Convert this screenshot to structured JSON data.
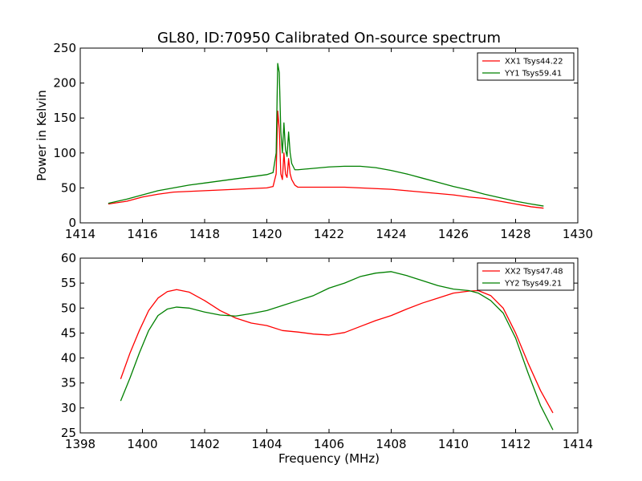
{
  "figure": {
    "title": "GL80, ID:70950 Calibrated On-source spectrum"
  },
  "chart_data": [
    {
      "type": "line",
      "title": "GL80, ID:70950 Calibrated On-source spectrum",
      "xlabel": "",
      "ylabel": "Power in Kelvin",
      "xlim": [
        1414,
        1430
      ],
      "ylim": [
        0,
        250
      ],
      "x_ticks": [
        1414,
        1416,
        1418,
        1420,
        1422,
        1424,
        1426,
        1428,
        1430
      ],
      "y_ticks": [
        0,
        50,
        100,
        150,
        200,
        250
      ],
      "grid": false,
      "legend_position": "top-right",
      "series": [
        {
          "name": "XX1 Tsys44.22",
          "color": "#ff0000",
          "x": [
            1414.9,
            1415.5,
            1416.0,
            1416.5,
            1417.0,
            1417.5,
            1418.0,
            1418.5,
            1419.0,
            1419.5,
            1420.0,
            1420.2,
            1420.3,
            1420.35,
            1420.4,
            1420.45,
            1420.5,
            1420.55,
            1420.6,
            1420.65,
            1420.7,
            1420.75,
            1420.8,
            1420.9,
            1421.0,
            1421.5,
            1422.0,
            1422.5,
            1423.0,
            1423.5,
            1424.0,
            1424.5,
            1425.0,
            1425.5,
            1426.0,
            1426.5,
            1427.0,
            1427.5,
            1428.0,
            1428.5,
            1428.9
          ],
          "values": [
            27,
            31,
            37,
            41,
            44,
            45,
            46,
            47,
            48,
            49,
            50,
            52,
            70,
            160,
            135,
            70,
            62,
            100,
            70,
            65,
            92,
            70,
            62,
            54,
            51,
            51,
            51,
            51,
            50,
            49,
            48,
            46,
            44,
            42,
            40,
            37,
            35,
            31,
            27,
            23,
            21
          ]
        },
        {
          "name": "YY1 Tsys59.41",
          "color": "#008000",
          "x": [
            1414.9,
            1415.5,
            1416.0,
            1416.5,
            1417.0,
            1417.5,
            1418.0,
            1418.5,
            1419.0,
            1419.5,
            1420.0,
            1420.2,
            1420.3,
            1420.35,
            1420.4,
            1420.45,
            1420.5,
            1420.55,
            1420.6,
            1420.65,
            1420.7,
            1420.75,
            1420.8,
            1420.9,
            1421.0,
            1421.5,
            1422.0,
            1422.5,
            1423.0,
            1423.5,
            1424.0,
            1424.5,
            1425.0,
            1425.5,
            1426.0,
            1426.5,
            1427.0,
            1427.5,
            1428.0,
            1428.5,
            1428.9
          ],
          "values": [
            28,
            34,
            40,
            46,
            50,
            54,
            57,
            60,
            63,
            66,
            69,
            72,
            100,
            228,
            215,
            130,
            100,
            143,
            105,
            95,
            130,
            100,
            85,
            76,
            76,
            78,
            80,
            81,
            81,
            79,
            75,
            70,
            64,
            58,
            52,
            47,
            41,
            36,
            31,
            27,
            24
          ]
        }
      ]
    },
    {
      "type": "line",
      "title": "",
      "xlabel": "Frequency (MHz)",
      "ylabel": "",
      "xlim": [
        1398,
        1414
      ],
      "ylim": [
        25,
        60
      ],
      "x_ticks": [
        1398,
        1400,
        1402,
        1404,
        1406,
        1408,
        1410,
        1412,
        1414
      ],
      "y_ticks": [
        25,
        30,
        35,
        40,
        45,
        50,
        55,
        60
      ],
      "grid": false,
      "legend_position": "top-right",
      "series": [
        {
          "name": "XX2 Tsys47.48",
          "color": "#ff0000",
          "x": [
            1399.3,
            1399.6,
            1399.9,
            1400.2,
            1400.5,
            1400.8,
            1401.1,
            1401.5,
            1402.0,
            1402.5,
            1403.0,
            1403.5,
            1404.0,
            1404.5,
            1405.0,
            1405.5,
            1406.0,
            1406.5,
            1407.0,
            1407.5,
            1408.0,
            1408.5,
            1409.0,
            1409.5,
            1410.0,
            1410.5,
            1410.8,
            1411.2,
            1411.6,
            1412.0,
            1412.4,
            1412.8,
            1413.2
          ],
          "values": [
            35.8,
            41,
            45.5,
            49.5,
            52,
            53.3,
            53.7,
            53.2,
            51.5,
            49.5,
            48,
            47,
            46.5,
            45.5,
            45.2,
            44.8,
            44.6,
            45.1,
            46.3,
            47.5,
            48.5,
            49.8,
            51,
            52,
            53,
            53.4,
            53.5,
            52.5,
            50,
            45,
            39,
            33.5,
            29
          ]
        },
        {
          "name": "YY2 Tsys49.21",
          "color": "#008000",
          "x": [
            1399.3,
            1399.6,
            1399.9,
            1400.2,
            1400.5,
            1400.8,
            1401.1,
            1401.5,
            1402.0,
            1402.5,
            1403.0,
            1403.5,
            1404.0,
            1404.5,
            1405.0,
            1405.5,
            1406.0,
            1406.5,
            1407.0,
            1407.5,
            1408.0,
            1408.5,
            1409.0,
            1409.5,
            1410.0,
            1410.5,
            1410.8,
            1411.2,
            1411.6,
            1412.0,
            1412.4,
            1412.8,
            1413.2
          ],
          "values": [
            31.4,
            36,
            41,
            45.5,
            48.5,
            49.8,
            50.2,
            50,
            49.2,
            48.6,
            48.4,
            48.9,
            49.5,
            50.5,
            51.5,
            52.5,
            54,
            55,
            56.3,
            57,
            57.3,
            56.5,
            55.5,
            54.5,
            53.8,
            53.5,
            53,
            51.5,
            49,
            44,
            37,
            30.5,
            25.6
          ]
        }
      ]
    }
  ]
}
